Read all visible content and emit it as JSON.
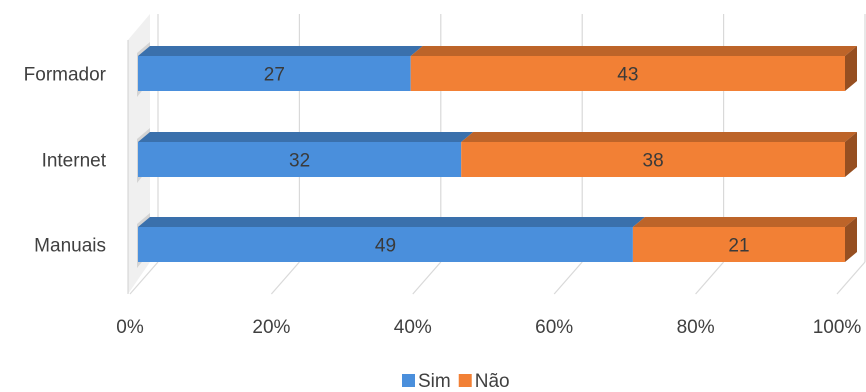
{
  "chart_data": {
    "type": "bar",
    "orientation": "horizontal",
    "stacking": "percent",
    "style": "3d",
    "categories": [
      "Formador",
      "Internet",
      "Manuais"
    ],
    "series": [
      {
        "name": "Sim",
        "values": [
          27,
          32,
          49
        ],
        "color": "#4a8fdc"
      },
      {
        "name": "Não",
        "values": [
          43,
          38,
          21
        ],
        "color": "#f28035"
      }
    ],
    "x_ticks": [
      "0%",
      "20%",
      "40%",
      "60%",
      "80%",
      "100%"
    ],
    "xlim": [
      0,
      100
    ],
    "grid": true,
    "legend": "bottom"
  }
}
